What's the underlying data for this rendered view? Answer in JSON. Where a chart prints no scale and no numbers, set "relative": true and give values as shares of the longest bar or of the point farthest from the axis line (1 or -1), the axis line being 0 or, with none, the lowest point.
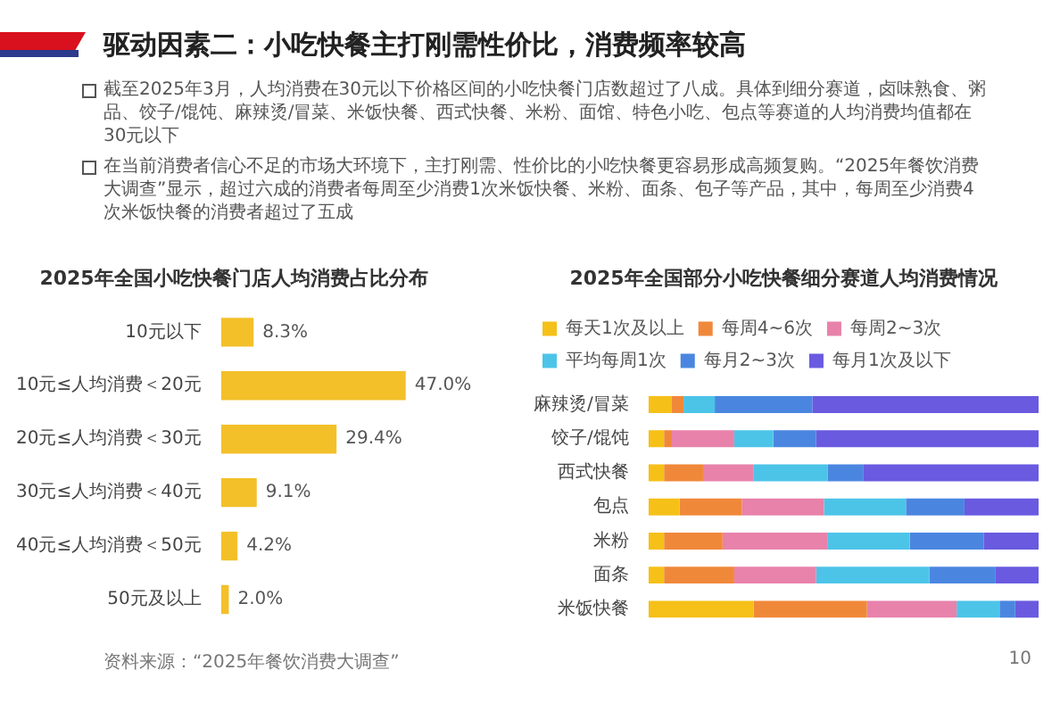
{
  "chart_data": [
    {
      "type": "other",
      "title": "驱动因素二：小吃快餐主打刚需性价比，消费频率较高",
      "annotations": [
        "截至2025年3月，人均消费在30元以下价格区间的小吃快餐门店数超过了八成。具体到细分赛道，卤味熟食、粥品、饺子/馄饨、麻辣烫/冒菜、米饭快餐、西式快餐、米粉、面馆、特色小吃、包点等赛道的人均消费均值都在30元以下",
        "在当前消费者信心不足的市场大环境下，主打刚需、性价比的小吃快餐更容易形成高频复购。“2025年餐饮消费大调查”显示，超过六成的消费者每周至少消费1次米饭快餐、米粉、面条、包子等产品，其中，每周至少消费4次米饭快餐的消费者超过了五成"
      ]
    },
    {
      "type": "bar",
      "orientation": "horizontal",
      "title": "2025年全国小吃快餐门店人均消费占比分布",
      "categories": [
        "10元以下",
        "10元≤人均消费＜20元",
        "20元≤人均消费＜30元",
        "30元≤人均消费＜40元",
        "40元≤人均消费＜50元",
        "50元及以上"
      ],
      "values": [
        8.3,
        47.0,
        29.4,
        9.1,
        4.2,
        2.0
      ],
      "value_labels": [
        "8.3%",
        "47.0%",
        "29.4%",
        "9.1%",
        "4.2%",
        "2.0%"
      ],
      "color": "#f3c02a",
      "tick_labels": "y"
    },
    {
      "type": "bar",
      "orientation": "horizontal",
      "stacked": true,
      "relative": true,
      "legend": "top",
      "title": "2025年全国部分小吃快餐细分赛道人均消费情况",
      "categories": [
        "麻辣烫/冒菜",
        "饺子/馄饨",
        "西式快餐",
        "包点",
        "米粉",
        "面条",
        "米饭快餐"
      ],
      "series": [
        {
          "name": "每天1次及以上",
          "color": "#f5c018",
          "values": [
            0.06,
            0.04,
            0.04,
            0.08,
            0.04,
            0.04,
            0.27
          ]
        },
        {
          "name": "每周4~6次",
          "color": "#f0883a",
          "values": [
            0.03,
            0.02,
            0.1,
            0.16,
            0.15,
            0.18,
            0.29
          ]
        },
        {
          "name": "每周2~3次",
          "color": "#e882aa",
          "values": [
            0,
            0.16,
            0.13,
            0.21,
            0.27,
            0.21,
            0.23
          ]
        },
        {
          "name": "平均每周1次",
          "color": "#4cc4e8",
          "values": [
            0.08,
            0.1,
            0.19,
            0.21,
            0.21,
            0.29,
            0.11
          ]
        },
        {
          "name": "每月2~3次",
          "color": "#4a86e0",
          "values": [
            0.25,
            0.11,
            0.09,
            0.15,
            0.19,
            0.17,
            0.04
          ]
        },
        {
          "name": "每月1次及以下",
          "color": "#6a5ae0",
          "values": [
            0.58,
            0.57,
            0.45,
            0.19,
            0.14,
            0.11,
            0.06
          ]
        }
      ]
    },
    {
      "type": "other",
      "annotations": [
        "资料来源：“2025年餐饮消费大调查”",
        "10"
      ]
    }
  ]
}
